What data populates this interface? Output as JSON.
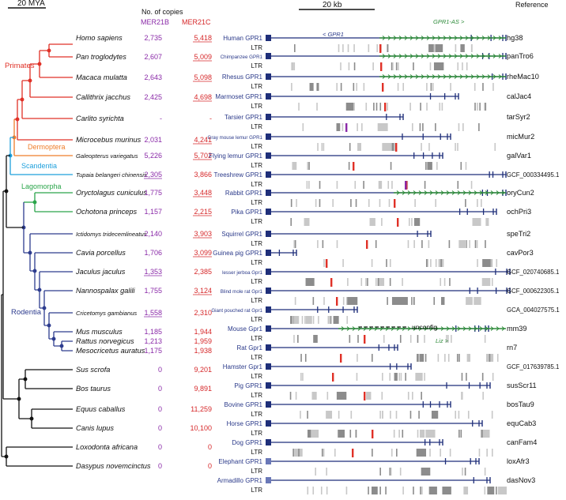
{
  "header": {
    "tree_scale": "20 MYA",
    "copies_title": "No. of copies",
    "col_mer21b": "MER21B",
    "col_mer21c": "MER21C",
    "kb_scale": "20 kb",
    "reference_title": "Reference"
  },
  "colors": {
    "primates": "#e03127",
    "dermoptera": "#ef7d2a",
    "scandentia": "#1fa0dc",
    "lagomorpha": "#2aa54a",
    "rodentia": "#2d3c8e",
    "outgroup": "#111111",
    "mer21b": "#8a2aa8",
    "mer21c": "#d6282a",
    "gene_line": "#1f2f7a",
    "liz_green": "#2e8b3a"
  },
  "clades": [
    {
      "name": "Primates",
      "color": "#e03127"
    },
    {
      "name": "Dermoptera",
      "color": "#ef7d2a"
    },
    {
      "name": "Scandentia",
      "color": "#1fa0dc"
    },
    {
      "name": "Lagomorpha",
      "color": "#2aa54a"
    },
    {
      "name": "Rodentia",
      "color": "#2d3c8e"
    }
  ],
  "annotations": {
    "gpr1_as": "GPR1-AS >",
    "gpr1_rev": "< GPR1",
    "liz": "Liz >",
    "unconfig": "unconfig"
  },
  "rows": [
    {
      "species": "Homo sapiens",
      "mer21b": "2,735",
      "mer21c": "5,418",
      "gene": "Human GPR1",
      "ltr": "LTR",
      "ref": "hg38",
      "clade": "primates"
    },
    {
      "species": "Pan troglodytes",
      "mer21b": "2,607",
      "mer21c": "5,009",
      "gene": "Chimpanzee GPR1",
      "ltr": "LTR",
      "ref": "panTro6",
      "clade": "primates"
    },
    {
      "species": "Macaca mulatta",
      "mer21b": "2,643",
      "mer21c": "5,098",
      "gene": "Rhesus GPR1",
      "ltr": "LTR",
      "ref": "rheMac10",
      "clade": "primates"
    },
    {
      "species": "Callithrix jacchus",
      "mer21b": "2,425",
      "mer21c": "4,698",
      "gene": "Marmoset GPR1",
      "ltr": "LTR",
      "ref": "calJac4",
      "clade": "primates"
    },
    {
      "species": "Carlito syrichta",
      "mer21b": "-",
      "mer21c": "-",
      "gene": "Tarsier GPR1",
      "ltr": "LTR",
      "ref": "tarSyr2",
      "clade": "primates"
    },
    {
      "species": "Microcebus murinus",
      "mer21b": "2,031",
      "mer21c": "4,241",
      "gene": "Gray mouse lemur GPR1",
      "ltr": "LTR",
      "ref": "micMur2",
      "clade": "primates"
    },
    {
      "species": "Galeopterus variegatus",
      "mer21b": "5,226",
      "mer21c": "5,702",
      "gene": "Flying lemur GPR1",
      "ltr": "LTR",
      "ref": "galVar1",
      "clade": "dermoptera"
    },
    {
      "species": "Tupaia belangeri chinensis",
      "mer21b": "2,305",
      "mer21c": "3,866",
      "gene": "Treeshrew GPR1",
      "ltr": "LTR",
      "ref": "GCF_000334495.1",
      "clade": "scandentia"
    },
    {
      "species": "Oryctolagus cuniculus",
      "mer21b": "1,775",
      "mer21c": "3,448",
      "gene": "Rabbit GPR1",
      "ltr": "LTR",
      "ref": "oryCun2",
      "clade": "lagomorpha"
    },
    {
      "species": "Ochotona princeps",
      "mer21b": "1,157",
      "mer21c": "2,215",
      "gene": "Pika GPR1",
      "ltr": "LTR",
      "ref": "ochPri3",
      "clade": "lagomorpha"
    },
    {
      "species": "Ictidomys tridecemlineatus",
      "mer21b": "2,140",
      "mer21c": "3,903",
      "gene": "Squirrel GPR1",
      "ltr": "LTR",
      "ref": "speTri2",
      "clade": "rodentia"
    },
    {
      "species": "Cavia porcellus",
      "mer21b": "1,706",
      "mer21c": "3,099",
      "gene": "Guinea pig GPR1",
      "ltr": "LTR",
      "ref": "cavPor3",
      "clade": "rodentia"
    },
    {
      "species": "Jaculus jaculus",
      "mer21b": "1,353",
      "mer21c": "2,385",
      "gene": "lesser jerboa Gpr1",
      "ltr": "LTR",
      "ref": "GCF_020740685.1",
      "clade": "rodentia"
    },
    {
      "species": "Nannospalax galili",
      "mer21b": "1,755",
      "mer21c": "3,124",
      "gene": "Blind mole rat Gpr1",
      "ltr": "LTR",
      "ref": "GCF_000622305.1",
      "clade": "rodentia"
    },
    {
      "species": "Cricetomys gambianus",
      "mer21b": "1,558",
      "mer21c": "2,310",
      "gene": "Giant pouched rat Gpr1",
      "ltr": "LTR",
      "ref": "GCA_004027575.1",
      "clade": "rodentia"
    },
    {
      "species": "Mus musculus",
      "mer21b": "1,185",
      "mer21c": "1,944",
      "gene": "Mouse Gpr1",
      "ltr": "LTR",
      "ref": "mm39",
      "clade": "rodentia"
    },
    {
      "species": "Rattus norvegicus",
      "mer21b": "1,213",
      "mer21c": "1,959",
      "gene": "Rat Gpr1",
      "ltr": "LTR",
      "ref": "rn7",
      "clade": "rodentia"
    },
    {
      "species": "Mesocricetus auratus",
      "mer21b": "1,175",
      "mer21c": "1,938",
      "gene": "Hamster Gpr1",
      "ltr": "LTR",
      "ref": "GCF_017639785.1",
      "clade": "rodentia"
    },
    {
      "species": "Sus scrofa",
      "mer21b": "0",
      "mer21c": "9,201",
      "gene": "Pig GPR1",
      "ltr": "LTR",
      "ref": "susScr11",
      "clade": "outgroup"
    },
    {
      "species": "Bos taurus",
      "mer21b": "0",
      "mer21c": "9,891",
      "gene": "Bovine GPR1",
      "ltr": "LTR",
      "ref": "bosTau9",
      "clade": "outgroup"
    },
    {
      "species": "Equus caballus",
      "mer21b": "0",
      "mer21c": "11,259",
      "gene": "Horse GPR1",
      "ltr": "LTR",
      "ref": "equCab3",
      "clade": "outgroup"
    },
    {
      "species": "Canis lupus",
      "mer21b": "0",
      "mer21c": "10,100",
      "gene": "Dog GPR1",
      "ltr": "LTR",
      "ref": "canFam4",
      "clade": "outgroup"
    },
    {
      "species": "Loxodonta africana",
      "mer21b": "0",
      "mer21c": "0",
      "gene": "Elephant GPR1",
      "ltr": "LTR",
      "ref": "loxAfr3",
      "clade": "outgroup"
    },
    {
      "species": "Dasypus novemcinctus",
      "mer21b": "0",
      "mer21c": "0",
      "gene": "Armadillo GPR1",
      "ltr": "LTR",
      "ref": "dasNov3",
      "clade": "outgroup"
    }
  ]
}
